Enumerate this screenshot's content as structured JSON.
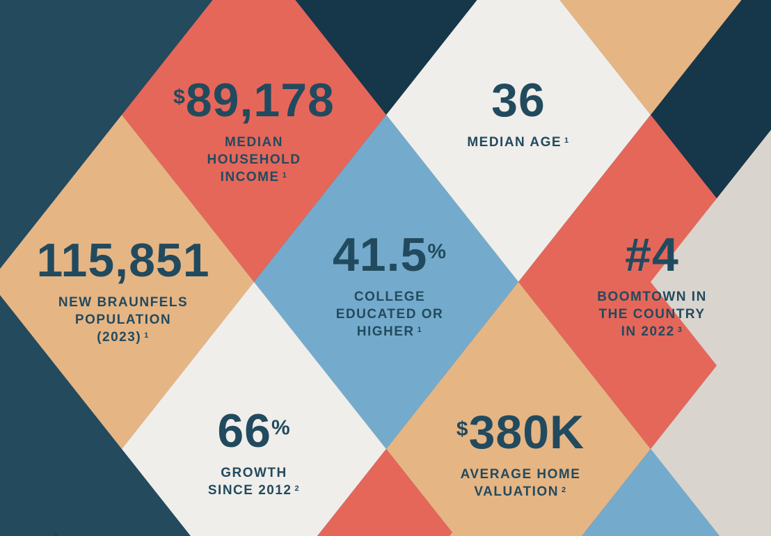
{
  "colors": {
    "navy": "#234a5d",
    "navy_dark": "#163649",
    "red": "#e5675a",
    "orange": "#e6b584",
    "white": "#efeeea",
    "gray": "#d9d4ce",
    "blue": "#74abcc",
    "text": "#224a5e"
  },
  "stats": [
    {
      "prefix": "$",
      "value": "89,178",
      "suffix": "",
      "label_lines": [
        "MEDIAN",
        "HOUSEHOLD",
        "INCOME"
      ],
      "footnote": "1"
    },
    {
      "prefix": "",
      "value": "36",
      "suffix": "",
      "label_lines": [
        "MEDIAN AGE"
      ],
      "footnote": "1"
    },
    {
      "prefix": "",
      "value": "115,851",
      "suffix": "",
      "label_lines": [
        "NEW BRAUNFELS",
        "POPULATION",
        "(2023)"
      ],
      "footnote": "1"
    },
    {
      "prefix": "",
      "value": "41.5",
      "suffix": "%",
      "label_lines": [
        "COLLEGE",
        "EDUCATED OR",
        "HIGHER"
      ],
      "footnote": "1"
    },
    {
      "prefix": "",
      "value": "#4",
      "suffix": "",
      "label_lines": [
        "BOOMTOWN IN",
        "THE COUNTRY",
        "IN 2022"
      ],
      "footnote": "3"
    },
    {
      "prefix": "",
      "value": "66",
      "suffix": "%",
      "label_lines": [
        "GROWTH",
        "SINCE 2012"
      ],
      "footnote": "2"
    },
    {
      "prefix": "$",
      "value": "380K",
      "suffix": "",
      "label_lines": [
        "AVERAGE HOME",
        "VALUATION"
      ],
      "footnote": "2"
    }
  ]
}
